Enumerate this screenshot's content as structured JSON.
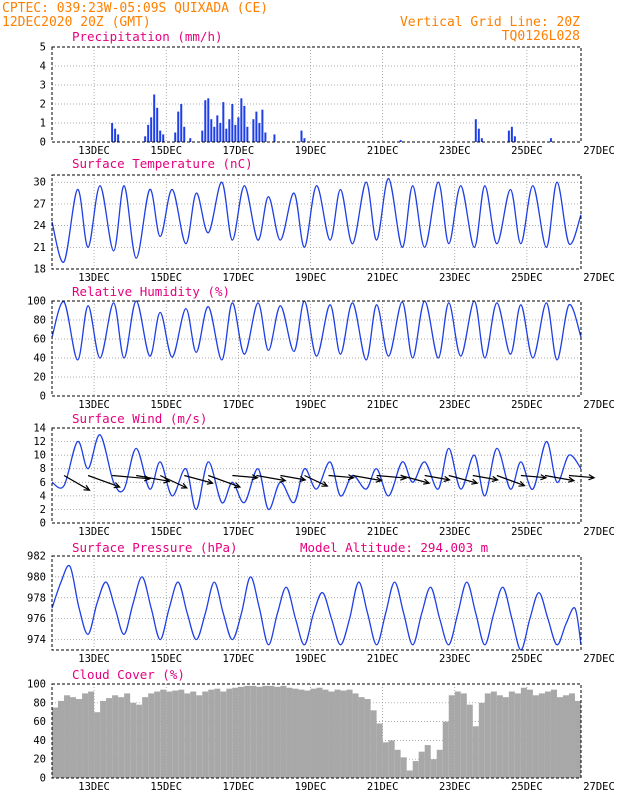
{
  "header": {
    "line1": "CPTEC:  039:23W-05:09S  QUIXADA (CE)",
    "line2": "12DEC2020 20Z (GMT)",
    "grid_note": "Vertical Grid Line: 20Z",
    "code": "TQ0126L028"
  },
  "model_altitude": "Model Altitude: 294.003 m",
  "colors": {
    "header": "#ff7f00",
    "title": "#e6007e",
    "series": "#1f3fe6",
    "cloud": "#a8a8a8",
    "arrow": "#000000"
  },
  "x_axis": {
    "start_hours": 0,
    "end_hours": 352,
    "tick_labels": [
      "13DEC",
      "15DEC",
      "17DEC",
      "19DEC",
      "21DEC",
      "23DEC",
      "25DEC",
      "27DEC"
    ],
    "tick_hours": [
      28,
      76,
      124,
      172,
      220,
      268,
      316,
      364
    ]
  },
  "chart_data": [
    {
      "type": "bar",
      "title": "Precipitation (mm/h)",
      "ylim": [
        0,
        5
      ],
      "yticks": [
        0,
        1,
        2,
        3,
        4,
        5
      ],
      "x_hours": [
        40,
        42,
        44,
        62,
        64,
        66,
        68,
        70,
        72,
        74,
        82,
        84,
        86,
        88,
        92,
        100,
        102,
        104,
        106,
        108,
        110,
        112,
        114,
        116,
        118,
        120,
        122,
        124,
        126,
        128,
        130,
        134,
        136,
        138,
        140,
        142,
        148,
        166,
        168,
        232,
        282,
        284,
        286,
        304,
        306,
        308,
        332
      ],
      "values": [
        1.0,
        0.7,
        0.4,
        0.3,
        0.9,
        1.3,
        2.5,
        1.8,
        0.6,
        0.4,
        0.5,
        1.6,
        2.0,
        0.8,
        0.2,
        0.6,
        2.2,
        2.3,
        1.2,
        0.8,
        1.4,
        1.0,
        2.1,
        0.7,
        1.2,
        2.0,
        0.9,
        1.3,
        2.3,
        1.9,
        0.8,
        1.2,
        1.6,
        1.0,
        1.7,
        0.5,
        0.4,
        0.6,
        0.2,
        0.1,
        1.2,
        0.7,
        0.2,
        0.6,
        0.8,
        0.3,
        0.2
      ]
    },
    {
      "type": "line",
      "title": "Surface Temperature (nC)",
      "ylim": [
        18,
        31
      ],
      "yticks": [
        18,
        21,
        24,
        27,
        30
      ],
      "baseline": 26,
      "amplitude": 5.5,
      "x_hours": [
        0,
        8,
        17,
        24,
        32,
        41,
        48,
        56,
        65,
        72,
        80,
        89,
        96,
        104,
        113,
        120,
        128,
        137,
        144,
        152,
        161,
        168,
        176,
        185,
        192,
        200,
        209,
        216,
        224,
        233,
        240,
        248,
        257,
        264,
        272,
        281,
        288,
        296,
        305,
        312,
        320,
        329,
        336,
        344,
        352
      ],
      "values": [
        24.5,
        19.0,
        29.0,
        21.0,
        29.5,
        20.5,
        29.5,
        19.5,
        29.0,
        22.5,
        29.0,
        21.5,
        28.5,
        23.0,
        30.0,
        22.0,
        29.5,
        22.0,
        28.0,
        22.0,
        28.5,
        21.0,
        29.5,
        22.0,
        29.0,
        21.5,
        30.0,
        22.0,
        30.5,
        21.0,
        29.5,
        21.0,
        30.0,
        21.5,
        29.5,
        21.0,
        29.5,
        21.5,
        29.0,
        21.5,
        29.5,
        21.0,
        30.0,
        21.5,
        25.5
      ]
    },
    {
      "type": "line",
      "title": "Relative Humidity (%)",
      "ylim": [
        0,
        100
      ],
      "yticks": [
        0,
        20,
        40,
        60,
        80,
        100
      ],
      "x_hours": [
        0,
        8,
        17,
        24,
        32,
        41,
        48,
        56,
        65,
        72,
        80,
        89,
        96,
        104,
        113,
        120,
        128,
        137,
        144,
        152,
        161,
        168,
        176,
        185,
        192,
        200,
        209,
        216,
        224,
        233,
        240,
        248,
        257,
        264,
        272,
        281,
        288,
        296,
        305,
        312,
        320,
        329,
        336,
        344,
        352
      ],
      "values": [
        62,
        99,
        38,
        95,
        40,
        98,
        40,
        100,
        42,
        88,
        41,
        92,
        46,
        94,
        38,
        98,
        44,
        98,
        48,
        95,
        47,
        100,
        42,
        96,
        44,
        98,
        38,
        96,
        42,
        99,
        40,
        100,
        40,
        98,
        42,
        100,
        40,
        98,
        44,
        96,
        40,
        98,
        38,
        96,
        62
      ]
    },
    {
      "type": "line",
      "title": "Surface Wind (m/s)",
      "ylim": [
        0,
        14
      ],
      "yticks": [
        0,
        2,
        4,
        6,
        8,
        10,
        12,
        14
      ],
      "x_hours": [
        0,
        8,
        17,
        24,
        32,
        41,
        48,
        56,
        65,
        72,
        80,
        89,
        96,
        104,
        113,
        120,
        128,
        137,
        144,
        152,
        161,
        168,
        176,
        185,
        192,
        200,
        209,
        216,
        224,
        233,
        240,
        248,
        257,
        264,
        272,
        281,
        288,
        296,
        305,
        312,
        320,
        329,
        336,
        344,
        352
      ],
      "values": [
        6,
        5.5,
        12,
        8,
        13,
        6,
        5,
        11,
        5,
        9,
        4,
        8,
        2,
        9,
        3,
        6,
        3,
        8,
        2,
        6,
        3,
        8,
        5,
        9,
        4,
        7,
        5,
        8,
        4,
        9,
        6,
        9,
        5,
        11,
        5,
        10,
        4,
        11,
        5,
        9,
        5,
        12,
        6,
        10,
        8
      ],
      "wind_arrows": {
        "x_hours": [
          8,
          24,
          40,
          56,
          72,
          88,
          104,
          120,
          136,
          152,
          168,
          184,
          200,
          216,
          232,
          248,
          264,
          280,
          296,
          312,
          328,
          344
        ],
        "dir_deg": [
          120,
          110,
          95,
          100,
          115,
          105,
          110,
          95,
          100,
          100,
          115,
          95,
          100,
          95,
          105,
          100,
          105,
          100,
          110,
          95,
          100,
          95
        ],
        "speed": [
          7,
          8,
          9,
          8,
          7,
          7,
          8,
          6,
          7,
          6,
          6,
          6,
          7,
          7,
          7,
          6,
          7,
          6,
          7,
          6,
          7,
          6
        ]
      }
    },
    {
      "type": "line",
      "title": "Surface Pressure (hPa)",
      "ylim": [
        973,
        982
      ],
      "yticks": [
        974,
        976,
        978,
        980,
        982
      ],
      "x_hours": [
        0,
        6,
        12,
        18,
        24,
        30,
        36,
        42,
        48,
        54,
        60,
        66,
        72,
        78,
        84,
        90,
        96,
        102,
        108,
        114,
        120,
        126,
        132,
        138,
        144,
        150,
        156,
        162,
        168,
        174,
        180,
        186,
        192,
        198,
        204,
        210,
        216,
        222,
        228,
        234,
        240,
        246,
        252,
        258,
        264,
        270,
        276,
        282,
        288,
        294,
        300,
        306,
        312,
        318,
        324,
        330,
        336,
        342,
        348,
        352
      ],
      "values": [
        977,
        979.5,
        981,
        977,
        974.5,
        977.5,
        979.5,
        977,
        974.5,
        977.5,
        980,
        977,
        974,
        977,
        979.5,
        976.5,
        974,
        976.5,
        979.5,
        976.5,
        974,
        976.5,
        980,
        977,
        973.5,
        976.5,
        979,
        976,
        973.5,
        976.5,
        978.5,
        976,
        973.5,
        976,
        979.5,
        976.5,
        973.5,
        976.5,
        979.5,
        976.5,
        973.5,
        976.5,
        979,
        976,
        973.5,
        976.5,
        979.5,
        976.5,
        973.5,
        976.5,
        979,
        976,
        973,
        976,
        978.5,
        976,
        973.5,
        975.5,
        977,
        973.5
      ]
    },
    {
      "type": "bar",
      "title": "Cloud Cover (%)",
      "ylim": [
        0,
        100
      ],
      "yticks": [
        0,
        20,
        40,
        60,
        80,
        100
      ],
      "x_hours": [
        0,
        4,
        8,
        12,
        16,
        20,
        24,
        28,
        32,
        36,
        40,
        44,
        48,
        52,
        56,
        60,
        64,
        68,
        72,
        76,
        80,
        84,
        88,
        92,
        96,
        100,
        104,
        108,
        112,
        116,
        120,
        124,
        128,
        132,
        136,
        140,
        144,
        148,
        152,
        156,
        160,
        164,
        168,
        172,
        176,
        180,
        184,
        188,
        192,
        196,
        200,
        204,
        208,
        212,
        216,
        220,
        224,
        228,
        232,
        236,
        240,
        244,
        248,
        252,
        256,
        260,
        264,
        268,
        272,
        276,
        280,
        284,
        288,
        292,
        296,
        300,
        304,
        308,
        312,
        316,
        320,
        324,
        328,
        332,
        336,
        340,
        344,
        348
      ],
      "values": [
        75,
        82,
        88,
        86,
        84,
        90,
        92,
        70,
        82,
        85,
        88,
        86,
        90,
        80,
        78,
        86,
        90,
        92,
        94,
        92,
        93,
        94,
        90,
        92,
        88,
        92,
        94,
        95,
        92,
        95,
        96,
        97,
        98,
        98,
        97,
        98,
        98,
        97,
        98,
        96,
        95,
        94,
        93,
        95,
        96,
        94,
        92,
        94,
        93,
        94,
        90,
        86,
        84,
        72,
        58,
        38,
        40,
        30,
        22,
        8,
        18,
        28,
        35,
        20,
        30,
        60,
        88,
        92,
        90,
        78,
        55,
        80,
        90,
        92,
        88,
        86,
        92,
        90,
        96,
        94,
        88,
        90,
        92,
        94,
        86,
        88,
        90,
        82
      ]
    }
  ]
}
